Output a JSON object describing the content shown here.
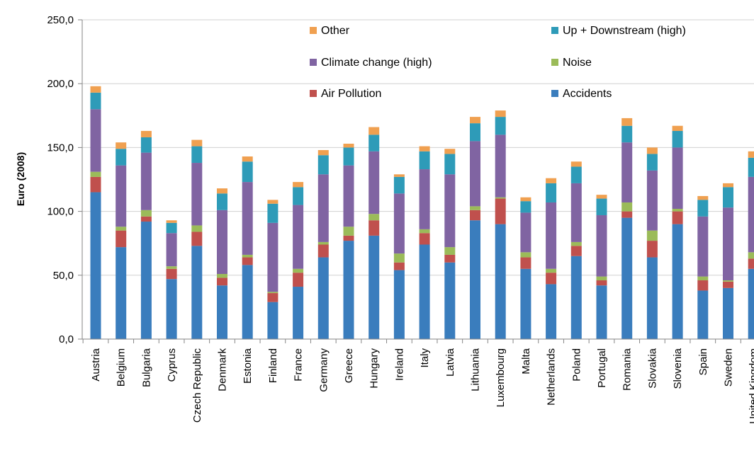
{
  "chart_data": {
    "type": "bar",
    "stacked": true,
    "title": "",
    "xlabel": "",
    "ylabel": "Euro (2008)",
    "ylim": [
      0,
      250
    ],
    "yticks": [
      "0,0",
      "50,0",
      "100,0",
      "150,0",
      "200,0",
      "250,0"
    ],
    "grid": true,
    "legend_position": "top",
    "categories": [
      "Austria",
      "Belgium",
      "Bulgaria",
      "Cyprus",
      "Czech Republic",
      "Denmark",
      "Estonia",
      "Finland",
      "France",
      "Germany",
      "Greece",
      "Hungary",
      "Ireland",
      "Italy",
      "Latvia",
      "Lithuania",
      "Luxembourg",
      "Malta",
      "Netherlands",
      "Poland",
      "Portugal",
      "Romania",
      "Slovakia",
      "Slovenia",
      "Spain",
      "Sweden",
      "United Kingdom"
    ],
    "series": [
      {
        "name": "Accidents",
        "color": "#3a7dbd",
        "values": [
          115,
          72,
          92,
          47,
          73,
          42,
          58,
          29,
          41,
          64,
          77,
          81,
          54,
          74,
          60,
          93,
          90,
          55,
          43,
          65,
          42,
          95,
          64,
          90,
          38,
          40,
          55
        ]
      },
      {
        "name": "Air Pollution",
        "color": "#c0504d",
        "values": [
          12,
          13,
          4,
          8,
          11,
          6,
          6,
          7,
          11,
          10,
          4,
          12,
          6,
          9,
          6,
          8,
          20,
          9,
          9,
          8,
          4,
          5,
          13,
          10,
          8,
          5,
          8
        ]
      },
      {
        "name": "Noise",
        "color": "#9bbb59",
        "values": [
          4,
          3,
          5,
          2,
          5,
          3,
          2,
          1,
          3,
          2,
          7,
          5,
          7,
          3,
          6,
          3,
          1,
          4,
          3,
          3,
          3,
          7,
          8,
          2,
          3,
          1,
          5
        ]
      },
      {
        "name": "Climate change (high)",
        "color": "#8064a2",
        "values": [
          49,
          48,
          45,
          26,
          49,
          50,
          57,
          54,
          50,
          53,
          48,
          49,
          47,
          47,
          57,
          51,
          49,
          31,
          52,
          46,
          48,
          47,
          47,
          48,
          47,
          57,
          59
        ]
      },
      {
        "name": "Up + Downstream (high)",
        "color": "#2e9bb8",
        "values": [
          13,
          13,
          12,
          8,
          13,
          13,
          16,
          15,
          14,
          15,
          14,
          13,
          13,
          14,
          16,
          14,
          14,
          9,
          15,
          13,
          13,
          13,
          13,
          13,
          13,
          16,
          15
        ]
      },
      {
        "name": "Other",
        "color": "#f0a050",
        "values": [
          5,
          5,
          5,
          2,
          5,
          4,
          4,
          3,
          4,
          4,
          3,
          6,
          2,
          4,
          4,
          5,
          5,
          3,
          4,
          4,
          3,
          6,
          5,
          4,
          3,
          3,
          5
        ]
      }
    ],
    "legend": [
      {
        "series": 5,
        "label": "Other"
      },
      {
        "series": 4,
        "label": "Up + Downstream (high)"
      },
      {
        "series": 3,
        "label": "Climate change (high)"
      },
      {
        "series": 2,
        "label": "Noise"
      },
      {
        "series": 1,
        "label": "Air Pollution"
      },
      {
        "series": 0,
        "label": "Accidents"
      }
    ]
  }
}
